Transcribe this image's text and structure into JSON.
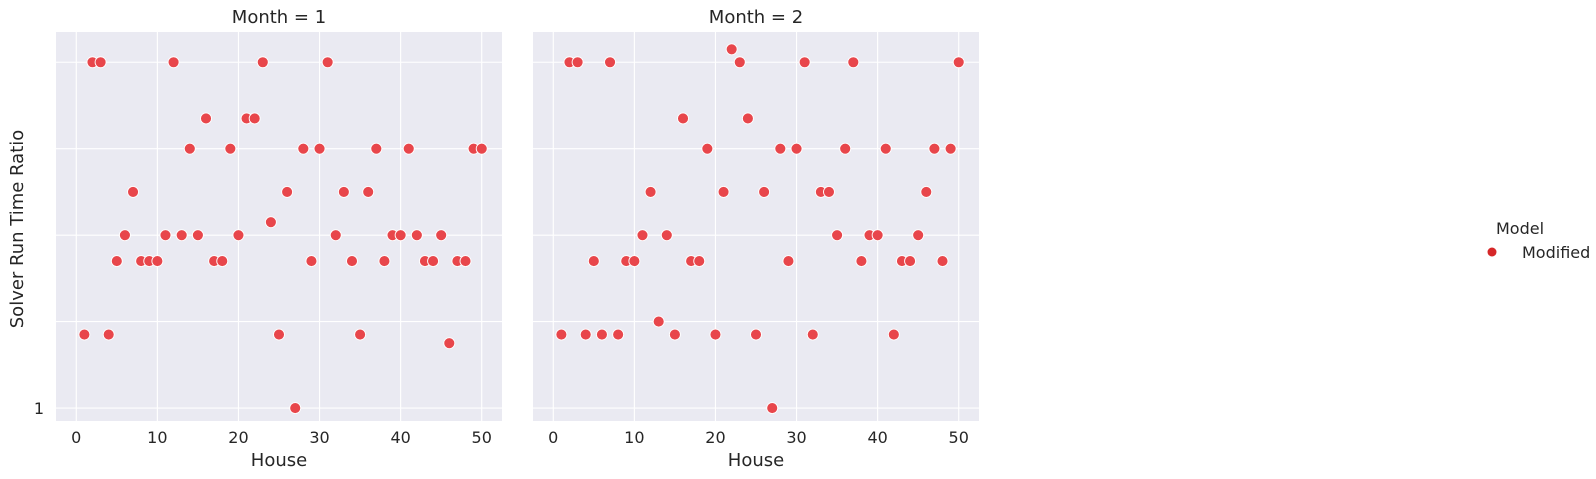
{
  "chart_data": {
    "type": "scatter",
    "style": {
      "background": "#eaeaf2",
      "grid": true,
      "grid_color": "#ffffff",
      "point_color": "#e8464b",
      "point_edge": "#ffffff",
      "legend_marker_color": "#d62728"
    },
    "ylabel": "Solver Run Time Ratio",
    "y_tick_labels": [
      {
        "value": 1,
        "label": "1"
      }
    ],
    "ylim": [
      0.85,
      5.35
    ],
    "xlim": [
      -2.5,
      52.5
    ],
    "x_ticks": [
      0,
      10,
      20,
      30,
      40,
      50
    ],
    "legend": {
      "title": "Model",
      "entries": [
        "Modified"
      ],
      "placement": "right"
    },
    "panels": [
      {
        "title": "Month = 1",
        "xlabel": "House",
        "series": [
          {
            "name": "Modified",
            "x": [
              1,
              2,
              3,
              4,
              5,
              6,
              7,
              8,
              9,
              10,
              11,
              12,
              13,
              14,
              15,
              16,
              17,
              18,
              19,
              20,
              21,
              22,
              23,
              24,
              25,
              26,
              27,
              28,
              29,
              30,
              31,
              32,
              33,
              34,
              35,
              36,
              37,
              38,
              39,
              40,
              41,
              42,
              43,
              44,
              45,
              46,
              47,
              48,
              49,
              50
            ],
            "y": [
              1.85,
              5.0,
              5.0,
              1.85,
              2.7,
              3.0,
              3.5,
              2.7,
              2.7,
              2.7,
              3.0,
              5.0,
              3.0,
              4.0,
              3.0,
              4.35,
              2.7,
              2.7,
              4.0,
              3.0,
              4.35,
              4.35,
              5.0,
              3.15,
              1.85,
              3.5,
              1.0,
              4.0,
              2.7,
              4.0,
              5.0,
              3.0,
              3.5,
              2.7,
              1.85,
              3.5,
              4.0,
              2.7,
              3.0,
              3.0,
              4.0,
              3.0,
              2.7,
              2.7,
              3.0,
              1.75,
              2.7,
              2.7,
              4.0,
              4.0
            ]
          }
        ]
      },
      {
        "title": "Month = 2",
        "xlabel": "House",
        "series": [
          {
            "name": "Modified",
            "x": [
              1,
              2,
              3,
              4,
              5,
              6,
              7,
              8,
              9,
              10,
              11,
              12,
              13,
              14,
              15,
              16,
              17,
              18,
              19,
              20,
              21,
              22,
              23,
              24,
              25,
              26,
              27,
              28,
              29,
              30,
              31,
              32,
              33,
              34,
              35,
              36,
              37,
              38,
              39,
              40,
              41,
              42,
              43,
              44,
              45,
              46,
              47,
              48,
              49,
              50
            ],
            "y": [
              1.85,
              5.0,
              5.0,
              1.85,
              2.7,
              1.85,
              5.0,
              1.85,
              2.7,
              2.7,
              3.0,
              3.5,
              2.0,
              3.0,
              1.85,
              4.35,
              2.7,
              2.7,
              4.0,
              1.85,
              3.5,
              5.15,
              5.0,
              4.35,
              1.85,
              3.5,
              1.0,
              4.0,
              2.7,
              4.0,
              5.0,
              1.85,
              3.5,
              3.5,
              3.0,
              4.0,
              5.0,
              2.7,
              3.0,
              3.0,
              4.0,
              1.85,
              2.7,
              2.7,
              3.0,
              3.5,
              4.0,
              2.7,
              4.0,
              5.0
            ]
          }
        ]
      }
    ]
  }
}
